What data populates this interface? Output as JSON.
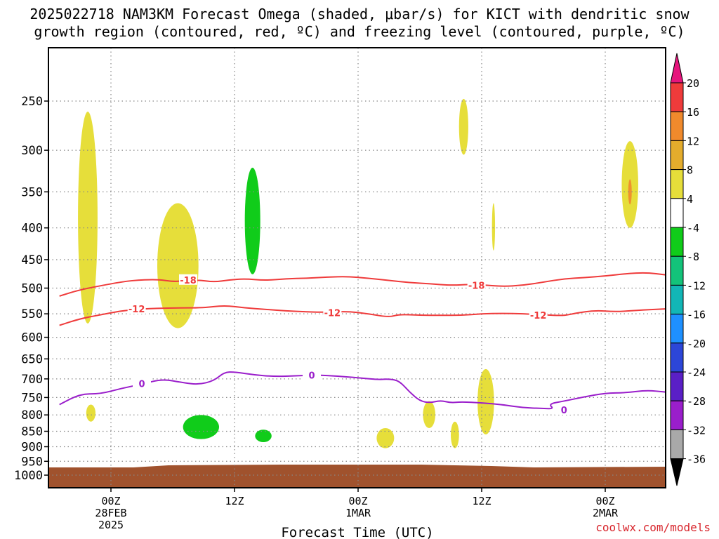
{
  "title": {
    "line1": "2025022718 NAM3KM Forecast Omega (shaded, μbar/s) for KICT with dendritic snow",
    "line2": "growth region (contoured, red, ºC) and freezing level (contoured, purple, ºC)"
  },
  "credit": "coolwx.com/models",
  "colors": {
    "ground": "#a0522d",
    "red_contour": "#ef3b3b",
    "purple_contour": "#9a1ecb",
    "yellow_fill": "#e6de3a",
    "green_fill": "#10cc1a",
    "orange_fill": "#f08a2c"
  },
  "chart_data": {
    "type": "contour",
    "title": "2025022718 NAM3KM Forecast Omega (shaded, μbar/s) for KICT with dendritic snow growth region (contoured, red, ºC) and freezing level (contoured, purple, ºC)",
    "xlabel": "Forecast Time (UTC)",
    "ylabel": "",
    "y_scale": "log-pressure (hPa), inverted",
    "y_ticks": [
      250,
      300,
      350,
      400,
      450,
      500,
      550,
      600,
      650,
      700,
      750,
      800,
      850,
      900,
      950,
      1000
    ],
    "x_range_hours": [
      -5,
      54
    ],
    "x_ticks": [
      {
        "hour": 0,
        "label": "00Z",
        "sub1": "28FEB",
        "sub2": "2025"
      },
      {
        "hour": 12,
        "label": "12Z",
        "sub1": "",
        "sub2": ""
      },
      {
        "hour": 24,
        "label": "00Z",
        "sub1": "1MAR",
        "sub2": ""
      },
      {
        "hour": 36,
        "label": "12Z",
        "sub1": "",
        "sub2": ""
      },
      {
        "hour": 48,
        "label": "00Z",
        "sub1": "2MAR",
        "sub2": ""
      }
    ],
    "grid": true,
    "colorbar": {
      "labels": [
        "20",
        "16",
        "12",
        "8",
        "4",
        "-4",
        "-8",
        "-12",
        "-16",
        "-20",
        "-24",
        "-28",
        "-32",
        "-36"
      ],
      "colors": [
        "#ef3b3b",
        "#f08a2c",
        "#e4ac2c",
        "#e6de3a",
        "#ffffff",
        "#10cc1a",
        "#13c37a",
        "#12b6b6",
        "#1e90ff",
        "#2c46d8",
        "#5a1fc6",
        "#9a1ecb",
        "#a9a9a9"
      ],
      "top_arrow_color": "#e6157d",
      "bottom_arrow_color": "#000000"
    },
    "contours": [
      {
        "name": "-18",
        "color": "#ef3b3b",
        "labels": [
          {
            "hour": 7.5,
            "p": 485,
            "text": "-18"
          },
          {
            "hour": 35.5,
            "p": 495,
            "text": "-18"
          }
        ],
        "points": [
          [
            -5,
            515
          ],
          [
            -3,
            503
          ],
          [
            0,
            492
          ],
          [
            2,
            486
          ],
          [
            4.5,
            484
          ],
          [
            6,
            488
          ],
          [
            7,
            487
          ],
          [
            8.5,
            485
          ],
          [
            10,
            489
          ],
          [
            11.5,
            485
          ],
          [
            13,
            483
          ],
          [
            15,
            486
          ],
          [
            17,
            483
          ],
          [
            19,
            482
          ],
          [
            21,
            480
          ],
          [
            23,
            479
          ],
          [
            25,
            482
          ],
          [
            27,
            486
          ],
          [
            29,
            490
          ],
          [
            31,
            492
          ],
          [
            33,
            495
          ],
          [
            35,
            493
          ],
          [
            36,
            494
          ],
          [
            38,
            497
          ],
          [
            40,
            495
          ],
          [
            42,
            489
          ],
          [
            44,
            483
          ],
          [
            46,
            481
          ],
          [
            48,
            478
          ],
          [
            50,
            474
          ],
          [
            52,
            472
          ],
          [
            54,
            476
          ]
        ]
      },
      {
        "name": "-12",
        "color": "#ef3b3b",
        "labels": [
          {
            "hour": 2.5,
            "p": 540,
            "text": "-12"
          },
          {
            "hour": 21.5,
            "p": 548,
            "text": "-12"
          },
          {
            "hour": 41.5,
            "p": 553,
            "text": "-12"
          }
        ],
        "points": [
          [
            -5,
            574
          ],
          [
            -3,
            560
          ],
          [
            -1,
            552
          ],
          [
            1,
            544
          ],
          [
            3,
            540
          ],
          [
            6,
            538
          ],
          [
            9,
            538
          ],
          [
            11,
            533
          ],
          [
            13,
            538
          ],
          [
            15,
            541
          ],
          [
            17,
            544
          ],
          [
            19,
            546
          ],
          [
            21,
            547
          ],
          [
            23,
            545
          ],
          [
            25,
            550
          ],
          [
            27,
            557
          ],
          [
            28,
            551
          ],
          [
            30,
            553
          ],
          [
            32,
            553
          ],
          [
            34,
            553
          ],
          [
            36,
            550
          ],
          [
            38,
            549
          ],
          [
            40,
            550
          ],
          [
            42,
            552
          ],
          [
            44,
            554
          ],
          [
            45,
            549
          ],
          [
            47,
            543
          ],
          [
            49,
            546
          ],
          [
            51,
            543
          ],
          [
            54,
            540
          ]
        ]
      },
      {
        "name": "0",
        "color": "#9a1ecb",
        "labels": [
          {
            "hour": 3,
            "p": 712,
            "text": "0"
          },
          {
            "hour": 19.5,
            "p": 690,
            "text": "0"
          },
          {
            "hour": 44,
            "p": 785,
            "text": "0"
          }
        ],
        "points": [
          [
            -5,
            770
          ],
          [
            -3,
            740
          ],
          [
            -1,
            740
          ],
          [
            1,
            725
          ],
          [
            3,
            714
          ],
          [
            5,
            700
          ],
          [
            7,
            710
          ],
          [
            8.5,
            715
          ],
          [
            10,
            705
          ],
          [
            11,
            683
          ],
          [
            12,
            682
          ],
          [
            14,
            690
          ],
          [
            16,
            694
          ],
          [
            18,
            692
          ],
          [
            20,
            690
          ],
          [
            22,
            693
          ],
          [
            24,
            697
          ],
          [
            26,
            702
          ],
          [
            27,
            700
          ],
          [
            28,
            705
          ],
          [
            29,
            735
          ],
          [
            30,
            760
          ],
          [
            31,
            765
          ],
          [
            32,
            758
          ],
          [
            33,
            765
          ],
          [
            34,
            762
          ],
          [
            36,
            765
          ],
          [
            38,
            770
          ],
          [
            40,
            779
          ],
          [
            42,
            781
          ],
          [
            43,
            782
          ],
          [
            42.5,
            768
          ],
          [
            44,
            760
          ],
          [
            46,
            748
          ],
          [
            48,
            738
          ],
          [
            50,
            737
          ],
          [
            52,
            730
          ],
          [
            54,
            735
          ]
        ]
      }
    ],
    "shaded_regions": [
      {
        "value_range": "4 to 8",
        "color": "#e6de3a",
        "hours": [
          -3.2,
          -1.3
        ],
        "p_range": [
          260,
          570
        ]
      },
      {
        "value_range": "4 to 8",
        "color": "#e6de3a",
        "hours": [
          4.5,
          8.5
        ],
        "p_range": [
          365,
          580
        ]
      },
      {
        "value_range": "-4 to -8",
        "color": "#10cc1a",
        "hours": [
          13,
          14.5
        ],
        "p_range": [
          320,
          475
        ]
      },
      {
        "value_range": "4 to 8",
        "color": "#e6de3a",
        "hours": [
          33.8,
          34.7
        ],
        "p_range": [
          248,
          305
        ]
      },
      {
        "value_range": "4 to 8",
        "color": "#e6de3a",
        "hours": [
          37,
          37.3
        ],
        "p_range": [
          365,
          435
        ]
      },
      {
        "value_range": "4 to 12",
        "color": "#e6de3a",
        "hours": [
          49.6,
          51.2
        ],
        "p_range": [
          290,
          400
        ]
      },
      {
        "value_range": "4 to 8",
        "color": "#e6de3a",
        "hours": [
          -2.4,
          -1.5
        ],
        "p_range": [
          770,
          820
        ]
      },
      {
        "value_range": "-4 to -8",
        "color": "#10cc1a",
        "hours": [
          7,
          10.5
        ],
        "p_range": [
          800,
          875
        ]
      },
      {
        "value_range": "-4 to -8",
        "color": "#10cc1a",
        "hours": [
          14,
          15.6
        ],
        "p_range": [
          845,
          885
        ]
      },
      {
        "value_range": "4 to 8",
        "color": "#e6de3a",
        "hours": [
          25.8,
          27.5
        ],
        "p_range": [
          840,
          905
        ]
      },
      {
        "value_range": "4 to 8",
        "color": "#e6de3a",
        "hours": [
          30.3,
          31.5
        ],
        "p_range": [
          760,
          840
        ]
      },
      {
        "value_range": "4 to 8",
        "color": "#e6de3a",
        "hours": [
          33,
          33.8
        ],
        "p_range": [
          820,
          905
        ]
      },
      {
        "value_range": "4 to 8",
        "color": "#e6de3a",
        "hours": [
          35.6,
          37.2
        ],
        "p_range": [
          675,
          860
        ]
      }
    ]
  }
}
